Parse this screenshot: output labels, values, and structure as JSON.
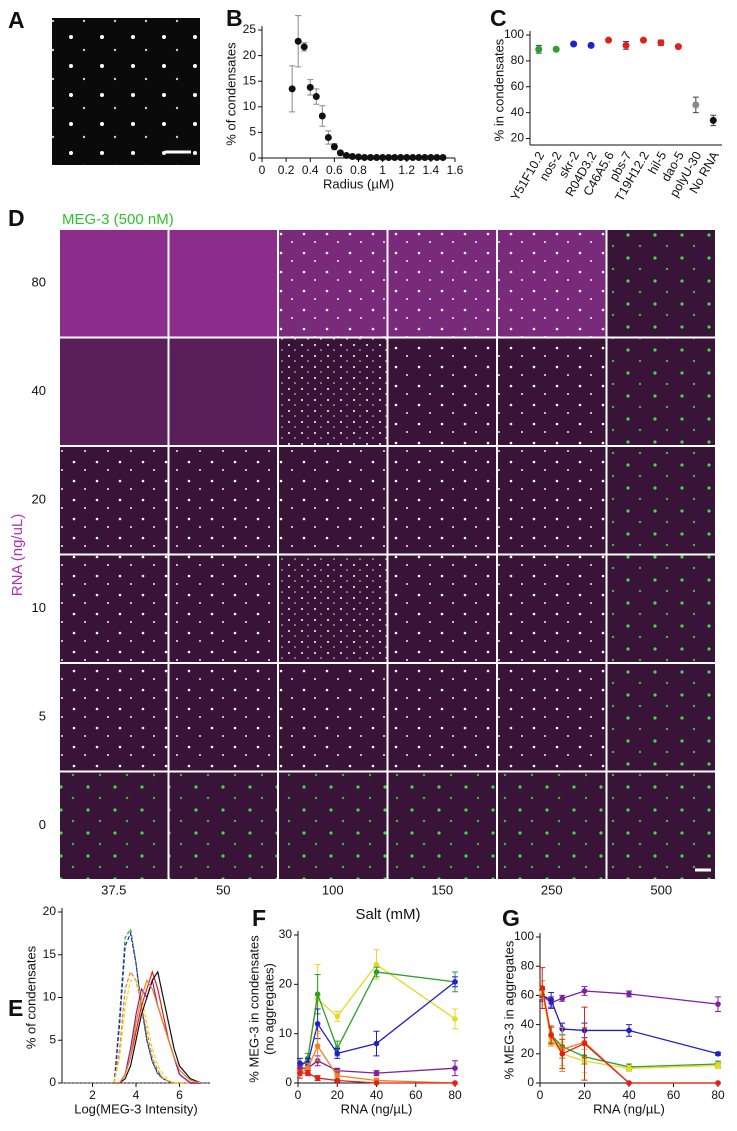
{
  "panel_labels": [
    "A",
    "B",
    "C",
    "D",
    "E",
    "F",
    "G"
  ],
  "panel_d": {
    "title": "MEG-3 (500 nM)",
    "row_title": "RNA (ng/uL)",
    "column_title": "Salt (mM)",
    "rows": [
      "80",
      "40",
      "20",
      "10",
      "5",
      "0"
    ],
    "columns": [
      "37.5",
      "50",
      "100",
      "150",
      "250",
      "500"
    ]
  },
  "chart_data": [
    {
      "type": "scatter",
      "xlabel": "Radius (µM)",
      "ylabel": "% of condensates",
      "color": "#111111",
      "x": [
        0.25,
        0.3,
        0.35,
        0.4,
        0.45,
        0.5,
        0.55,
        0.6,
        0.65,
        0.7,
        0.75,
        0.8,
        0.85,
        0.9,
        0.95,
        1,
        1.05,
        1.1,
        1.15,
        1.2,
        1.25,
        1.3,
        1.35,
        1.4,
        1.45,
        1.5
      ],
      "values": [
        13.5,
        22.8,
        21.7,
        13.8,
        12,
        8.2,
        4,
        2.2,
        1,
        0.5,
        0.3,
        0.2,
        0.1,
        0.1,
        0.1,
        0.1,
        0.1,
        0.1,
        0.1,
        0.1,
        0.1,
        0.1,
        0.1,
        0.1,
        0.1,
        0.1
      ],
      "errors": [
        4.5,
        5,
        0.8,
        1.5,
        1.5,
        2,
        1.3,
        0.6,
        0.3,
        0.2,
        0.1,
        0.1,
        0.1,
        0.1,
        0.1,
        0.1,
        0.1,
        0.1,
        0.1,
        0.1,
        0.1,
        0.1,
        0.1,
        0.1,
        0.1,
        0.1
      ],
      "xlim": [
        0,
        1.6
      ],
      "xticks": [
        0,
        0.2,
        0.4,
        0.6,
        0.8,
        1,
        1.2,
        1.4,
        1.6
      ],
      "ylim": [
        0,
        25
      ],
      "yticks": [
        0,
        5,
        10,
        15,
        20,
        25
      ]
    },
    {
      "type": "dot",
      "ylabel": "% in condensates",
      "categories": [
        "Y51F10.2",
        "nos-2",
        "skr-2",
        "R04D3.2",
        "C46A5.6",
        "pbs-7",
        "T19H12.2",
        "hil-5",
        "dao-5",
        "polyU-30",
        "No RNA"
      ],
      "values": [
        89,
        89,
        93,
        92,
        96,
        92,
        96,
        94,
        91,
        46,
        34
      ],
      "errors": [
        3,
        1,
        1,
        1,
        1,
        3,
        1,
        2,
        1,
        6,
        4
      ],
      "colors": [
        "#2ca02c",
        "#2ca02c",
        "#1f1fcc",
        "#1f1fcc",
        "#e0201a",
        "#e0201a",
        "#e0201a",
        "#e0201a",
        "#e0201a",
        "#888888",
        "#111111"
      ],
      "ylim": [
        15,
        100
      ],
      "yticks": [
        20,
        40,
        60,
        80,
        100
      ]
    },
    {
      "type": "line",
      "xlabel": "Log(MEG-3 Intensity)",
      "ylabel": "% of condensates",
      "x": [
        3,
        3.25,
        3.5,
        3.75,
        4,
        4.25,
        4.5,
        4.75,
        5,
        5.25,
        5.5,
        5.75,
        6,
        6.5,
        7
      ],
      "series": [
        {
          "color": "#2ca02c",
          "dashed": true,
          "values": [
            0,
            8,
            17,
            18,
            14,
            9,
            5,
            2.5,
            1,
            0.5,
            0.2,
            0,
            0,
            0,
            0
          ]
        },
        {
          "color": "#1f1fcc",
          "dashed": true,
          "values": [
            0,
            7,
            16,
            17.5,
            14,
            9,
            5,
            2.5,
            1.2,
            0.5,
            0.2,
            0,
            0,
            0,
            0
          ]
        },
        {
          "color": "#f08020",
          "dashed": true,
          "values": [
            0,
            4,
            11,
            13,
            12,
            9,
            6,
            3,
            1.5,
            0.5,
            0.2,
            0,
            0,
            0,
            0
          ]
        },
        {
          "color": "#e8d820",
          "dashed": true,
          "values": [
            0,
            3,
            9,
            12,
            12,
            10,
            7,
            4,
            2,
            1,
            0.3,
            0,
            0,
            0,
            0
          ]
        },
        {
          "color": "#e0201a",
          "dashed": false,
          "values": [
            0,
            0,
            1,
            3,
            6,
            9,
            11,
            13,
            11,
            8,
            5,
            3,
            1,
            0,
            0
          ]
        },
        {
          "color": "#8020a0",
          "dashed": false,
          "values": [
            0,
            0,
            1,
            4,
            8,
            11,
            10,
            12,
            9,
            7,
            5,
            3,
            1,
            0,
            0
          ]
        },
        {
          "color": "#111111",
          "dashed": false,
          "values": [
            0,
            0,
            0.5,
            2,
            5,
            8,
            10,
            12,
            13,
            10,
            7,
            4,
            2,
            0.5,
            0
          ]
        },
        {
          "color": "#f08020",
          "dashed": false,
          "values": [
            0,
            0,
            1,
            3,
            7,
            10,
            12,
            11,
            9,
            7,
            5,
            3,
            1.5,
            0.3,
            0
          ]
        }
      ],
      "xlim": [
        0.6,
        7.4
      ],
      "xticks": [
        2,
        4,
        6
      ],
      "ylim": [
        0,
        20
      ],
      "yticks": [
        0,
        5,
        10,
        15,
        20
      ]
    },
    {
      "type": "line",
      "xlabel": "RNA (ng/µL)",
      "ylabel": "% MEG-3 in condensates",
      "ylabel2": "(no aggregates)",
      "markers": true,
      "x": [
        1,
        5,
        10,
        20,
        40,
        80
      ],
      "series": [
        {
          "color": "#e8d820",
          "values": [
            3,
            5,
            17,
            13.5,
            24,
            13
          ],
          "errors": [
            1,
            1,
            7,
            1,
            3,
            2
          ]
        },
        {
          "color": "#2ca02c",
          "values": [
            3,
            5,
            18,
            7,
            22.5,
            20.5
          ],
          "errors": [
            1,
            1,
            4,
            1.5,
            1,
            2
          ]
        },
        {
          "color": "#1f1fcc",
          "values": [
            4,
            4,
            12,
            6,
            8,
            20.5
          ],
          "errors": [
            1,
            1,
            3,
            1,
            2.5,
            1
          ]
        },
        {
          "color": "#8020a0",
          "values": [
            3,
            3,
            4.5,
            2.5,
            2,
            3
          ],
          "errors": [
            0.5,
            0.5,
            1,
            0.5,
            0.5,
            1.5
          ]
        },
        {
          "color": "#f08020",
          "values": [
            2,
            3,
            7.5,
            1.5,
            0.5,
            0
          ],
          "errors": [
            0.5,
            1,
            3,
            1,
            0.5,
            0
          ]
        },
        {
          "color": "#e0201a",
          "values": [
            2,
            2,
            1,
            0.5,
            0,
            0
          ],
          "errors": [
            1,
            0.5,
            0.5,
            0.3,
            0,
            0
          ]
        }
      ],
      "xlim": [
        0,
        80
      ],
      "xticks": [
        0,
        20,
        40,
        60,
        80
      ],
      "ylim": [
        0,
        30
      ],
      "yticks": [
        0,
        10,
        20,
        30
      ]
    },
    {
      "type": "line",
      "xlabel": "RNA (ng/µL)",
      "ylabel": "% MEG-3 in aggregates",
      "markers": true,
      "x": [
        1,
        5,
        10,
        20,
        40,
        80
      ],
      "series": [
        {
          "color": "#8020a0",
          "values": [
            60,
            55,
            58,
            63,
            61,
            54
          ],
          "errors": [
            3,
            4,
            2,
            3,
            2,
            5
          ]
        },
        {
          "color": "#1f1fcc",
          "values": [
            60,
            57,
            37,
            36,
            36,
            20
          ],
          "errors": [
            4,
            5,
            4,
            5,
            4,
            1
          ]
        },
        {
          "color": "#2ca02c",
          "values": [
            62,
            33,
            25,
            18,
            11,
            13
          ],
          "errors": [
            4,
            5,
            8,
            5,
            2,
            2
          ]
        },
        {
          "color": "#e8d820",
          "values": [
            62,
            30,
            20,
            15,
            10,
            12
          ],
          "errors": [
            4,
            5,
            8,
            8,
            2,
            2
          ]
        },
        {
          "color": "#f08020",
          "values": [
            65,
            32,
            23,
            28,
            0,
            0
          ],
          "errors": [
            5,
            6,
            15,
            10,
            0,
            0
          ]
        },
        {
          "color": "#e0201a",
          "values": [
            65,
            33,
            20,
            27,
            0,
            0
          ],
          "errors": [
            14,
            6,
            10,
            25,
            0,
            0
          ]
        }
      ],
      "xlim": [
        0,
        80
      ],
      "xticks": [
        0,
        20,
        40,
        60,
        80
      ],
      "ylim": [
        0,
        100
      ],
      "yticks": [
        0,
        20,
        40,
        60,
        80,
        100
      ]
    }
  ]
}
